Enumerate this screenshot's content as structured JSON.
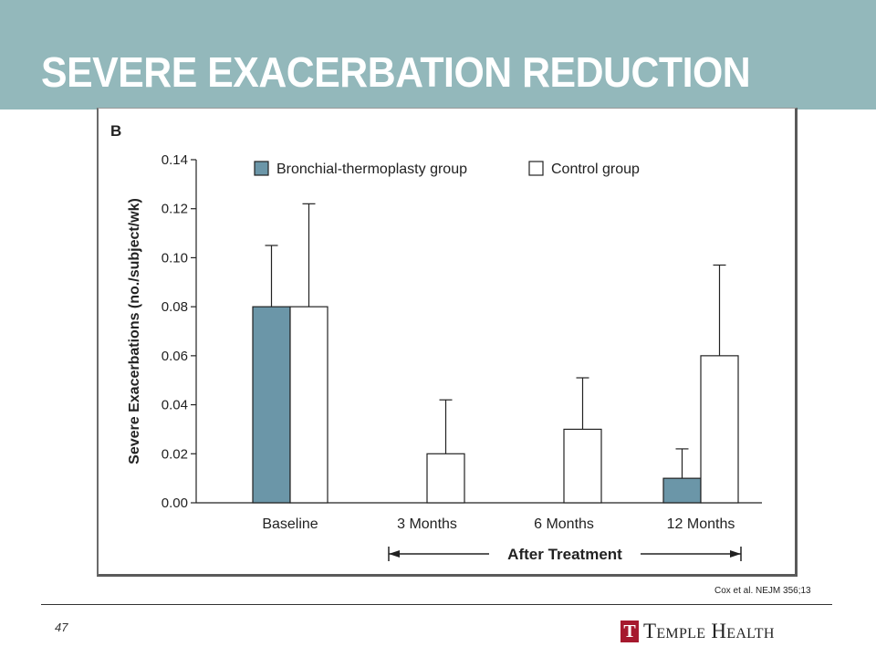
{
  "slide": {
    "title": "SEVERE EXACERBATION REDUCTION",
    "citation": "Cox et al. NEJM 356;13",
    "page_number": "47",
    "logo_mark": "T",
    "logo_text": "Temple Health"
  },
  "colors": {
    "title_band": "#93b8bb",
    "title_text": "#ffffff",
    "bronchial_bar": "#6b96a8",
    "control_bar": "#ffffff",
    "logo_red": "#a6192e"
  },
  "chart_data": {
    "type": "bar",
    "panel_label": "B",
    "ylabel": "Severe Exacerbations (no./subject/wk)",
    "ylim": [
      0,
      0.14
    ],
    "yticks": [
      "0.00",
      "0.02",
      "0.04",
      "0.06",
      "0.08",
      "0.10",
      "0.12",
      "0.14"
    ],
    "categories": [
      "Baseline",
      "3 Months",
      "6 Months",
      "12 Months"
    ],
    "series": [
      {
        "name": "Bronchial-thermoplasty group",
        "values": [
          0.08,
          0.0,
          0.0,
          0.01
        ],
        "error_upper": [
          0.105,
          null,
          null,
          0.022
        ],
        "color": "#6b96a8"
      },
      {
        "name": "Control group",
        "values": [
          0.08,
          0.02,
          0.03,
          0.06
        ],
        "error_upper": [
          0.122,
          0.042,
          0.051,
          0.097
        ],
        "color": "#ffffff"
      }
    ],
    "bracket_label": "After Treatment",
    "legend_position": "top",
    "grid": false
  }
}
